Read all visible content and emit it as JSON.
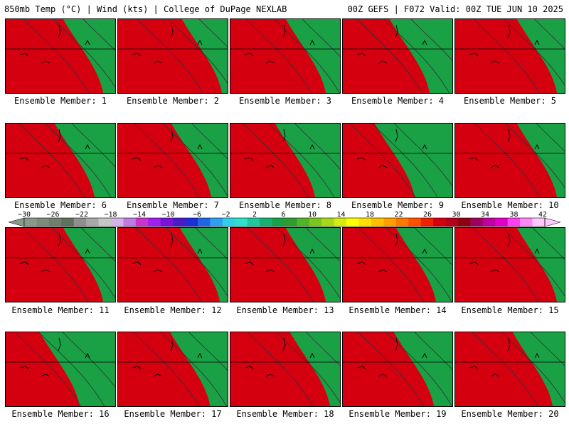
{
  "header": {
    "left": "850mb Temp (°C) | Wind (kts) | College of DuPage NEXLAB",
    "right": "00Z GEFS | F072 Valid: 00Z TUE JUN 10 2025"
  },
  "members": [
    {
      "label": "Ensemble Member: 1",
      "warm": 0.62
    },
    {
      "label": "Ensemble Member: 2",
      "warm": 0.66
    },
    {
      "label": "Ensemble Member: 3",
      "warm": 0.56
    },
    {
      "label": "Ensemble Member: 4",
      "warm": 0.52
    },
    {
      "label": "Ensemble Member: 5",
      "warm": 0.64
    },
    {
      "label": "Ensemble Member: 6",
      "warm": 0.5
    },
    {
      "label": "Ensemble Member: 7",
      "warm": 0.58
    },
    {
      "label": "Ensemble Member: 8",
      "warm": 0.48
    },
    {
      "label": "Ensemble Member: 9",
      "warm": 0.34
    },
    {
      "label": "Ensemble Member: 10",
      "warm": 0.66
    },
    {
      "label": "Ensemble Member: 11",
      "warm": 0.6
    },
    {
      "label": "Ensemble Member: 12",
      "warm": 0.62
    },
    {
      "label": "Ensemble Member: 13",
      "warm": 0.6
    },
    {
      "label": "Ensemble Member: 14",
      "warm": 0.56
    },
    {
      "label": "Ensemble Member: 15",
      "warm": 0.62
    },
    {
      "label": "Ensemble Member: 16",
      "warm": 0.4
    },
    {
      "label": "Ensemble Member: 17",
      "warm": 0.55
    },
    {
      "label": "Ensemble Member: 18",
      "warm": 0.6
    },
    {
      "label": "Ensemble Member: 19",
      "warm": 0.56
    },
    {
      "label": "Ensemble Member: 20",
      "warm": 0.6
    }
  ],
  "colorbar": {
    "ticks": [
      "−30",
      "−26",
      "−22",
      "−18",
      "−14",
      "−10",
      "−6",
      "−2",
      "2",
      "6",
      "10",
      "14",
      "18",
      "22",
      "26",
      "30",
      "34",
      "38",
      "42"
    ],
    "colors": [
      "#8a9a8a",
      "#7b8c7b",
      "#6e7f6e",
      "#5f705f",
      "#8f8f8f",
      "#a8a8a8",
      "#c6c6c6",
      "#d6b3e6",
      "#c07be0",
      "#cc33cc",
      "#a020f0",
      "#7a12d8",
      "#4a1cc8",
      "#1c2fd8",
      "#1f66e6",
      "#2fa0f0",
      "#30d0e8",
      "#30e0c8",
      "#20c8a0",
      "#18b070",
      "#1aa045",
      "#2f9e2f",
      "#52b42a",
      "#7ac81e",
      "#a8d81a",
      "#d4ec14",
      "#ffff00",
      "#ffe000",
      "#ffc000",
      "#ffa000",
      "#ff7800",
      "#ff5000",
      "#f02000",
      "#d40010",
      "#b40018",
      "#900010",
      "#a00060",
      "#c000a0",
      "#e000c8",
      "#ff40f0",
      "#ff88f8",
      "#ffc8ff"
    ]
  }
}
